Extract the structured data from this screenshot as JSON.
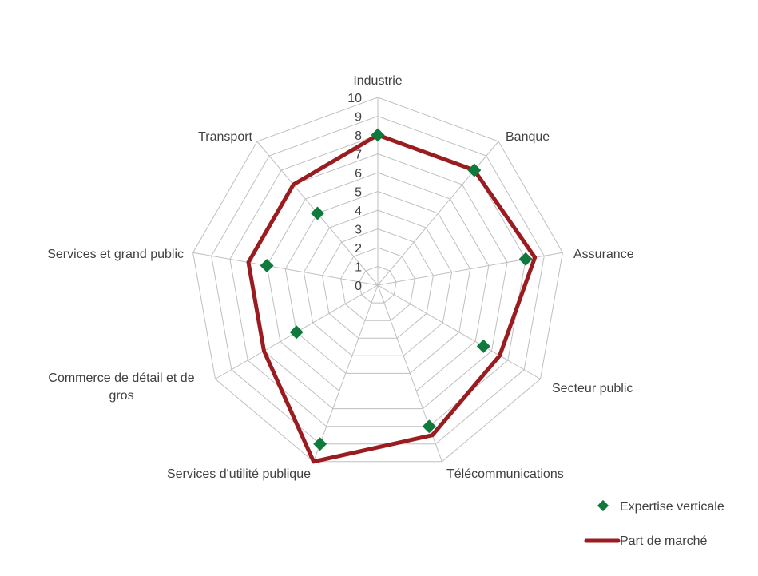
{
  "chart_data": {
    "type": "radar",
    "categories": [
      "Industrie",
      "Banque",
      "Assurance",
      "Secteur public",
      "Télécommunications",
      "Services d'utilité publique",
      "Commerce de détail et de gros",
      "Services et grand public",
      "Transport"
    ],
    "r_ticks": [
      0,
      1,
      2,
      3,
      4,
      5,
      6,
      7,
      8,
      9,
      10
    ],
    "rlim": [
      0,
      10
    ],
    "grid": true,
    "legend_position": "bottom-right",
    "series": [
      {
        "name": "Expertise verticale",
        "style": "markers",
        "color": "#0e7a3b",
        "values": [
          8,
          8,
          8,
          6.5,
          8,
          9,
          5,
          6,
          5
        ]
      },
      {
        "name": "Part de marché",
        "style": "line",
        "color": "#9b1c20",
        "values": [
          8,
          8,
          8.5,
          7.5,
          8.5,
          10,
          7,
          7,
          7
        ]
      }
    ]
  }
}
